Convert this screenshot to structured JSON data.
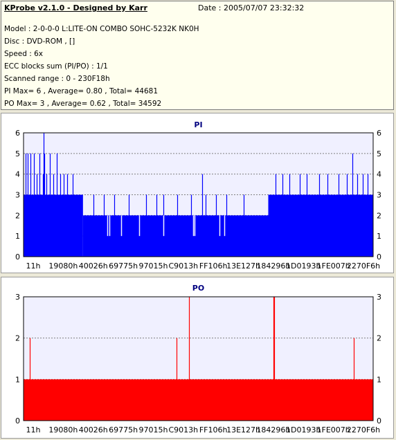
{
  "header": {
    "app_title": "KProbe v2.1.0 - Designed by Karr",
    "date": "Date : 2005/07/07 23:32:32",
    "lines": [
      "Model : 2-0-0-0 L:LITE-ON COMBO SOHC-5232K NK0H",
      "Disc : DVD-ROM ,  []",
      "Speed : 6x",
      "ECC blocks sum (PI/PO) : 1/1",
      "Scanned range : 0 - 230F18h",
      "PI Max= 6 , Average= 0.80 , Total= 44681",
      "PO Max= 3 , Average= 0.62 , Total= 34592"
    ]
  },
  "colors": {
    "pi": "#0000ff",
    "po": "#ff0000",
    "plot_bg": "#f0f0ff",
    "title": "#000080"
  },
  "chart_data": [
    {
      "type": "bar",
      "title": "PI",
      "x_tick_labels": [
        "11h",
        "19080h",
        "40026h",
        "69775h",
        "97015h",
        "C9013h",
        "FF106h",
        "13E127h",
        "184296h",
        "1D0193h",
        "1FE007h",
        "2270F6h"
      ],
      "ylim": [
        0,
        6
      ],
      "y_ticks": [
        0,
        1,
        2,
        3,
        4,
        5,
        6
      ],
      "grid": true,
      "baseline_segments": [
        {
          "from": 0.0,
          "to": 0.17,
          "value": 3
        },
        {
          "from": 0.17,
          "to": 0.7,
          "value": 2
        },
        {
          "from": 0.7,
          "to": 1.0,
          "value": 3
        }
      ],
      "spikes": [
        {
          "x": 0.005,
          "value": 5
        },
        {
          "x": 0.012,
          "value": 5
        },
        {
          "x": 0.02,
          "value": 5
        },
        {
          "x": 0.03,
          "value": 5
        },
        {
          "x": 0.038,
          "value": 4
        },
        {
          "x": 0.045,
          "value": 5
        },
        {
          "x": 0.055,
          "value": 4
        },
        {
          "x": 0.06,
          "value": 5
        },
        {
          "x": 0.065,
          "value": 4
        },
        {
          "x": 0.075,
          "value": 5
        },
        {
          "x": 0.085,
          "value": 4
        },
        {
          "x": 0.095,
          "value": 5
        },
        {
          "x": 0.105,
          "value": 4
        },
        {
          "x": 0.115,
          "value": 4
        },
        {
          "x": 0.125,
          "value": 4
        },
        {
          "x": 0.14,
          "value": 4
        },
        {
          "x": 0.058,
          "value": 6
        },
        {
          "x": 0.16,
          "value": 3
        },
        {
          "x": 0.2,
          "value": 3
        },
        {
          "x": 0.23,
          "value": 3
        },
        {
          "x": 0.26,
          "value": 3
        },
        {
          "x": 0.3,
          "value": 3
        },
        {
          "x": 0.35,
          "value": 3
        },
        {
          "x": 0.38,
          "value": 3
        },
        {
          "x": 0.4,
          "value": 3
        },
        {
          "x": 0.44,
          "value": 3
        },
        {
          "x": 0.48,
          "value": 3
        },
        {
          "x": 0.52,
          "value": 3
        },
        {
          "x": 0.55,
          "value": 3
        },
        {
          "x": 0.58,
          "value": 3
        },
        {
          "x": 0.51,
          "value": 4
        },
        {
          "x": 0.63,
          "value": 3
        },
        {
          "x": 0.72,
          "value": 4
        },
        {
          "x": 0.74,
          "value": 4
        },
        {
          "x": 0.76,
          "value": 4
        },
        {
          "x": 0.79,
          "value": 4
        },
        {
          "x": 0.81,
          "value": 4
        },
        {
          "x": 0.845,
          "value": 4
        },
        {
          "x": 0.87,
          "value": 4
        },
        {
          "x": 0.9,
          "value": 4
        },
        {
          "x": 0.925,
          "value": 4
        },
        {
          "x": 0.94,
          "value": 5
        },
        {
          "x": 0.955,
          "value": 4
        },
        {
          "x": 0.97,
          "value": 4
        },
        {
          "x": 0.985,
          "value": 4
        }
      ],
      "dips": [
        {
          "x": 0.24,
          "value": 1
        },
        {
          "x": 0.245,
          "value": 1
        },
        {
          "x": 0.28,
          "value": 1
        },
        {
          "x": 0.33,
          "value": 1
        },
        {
          "x": 0.4,
          "value": 1
        },
        {
          "x": 0.485,
          "value": 1
        },
        {
          "x": 0.49,
          "value": 1
        },
        {
          "x": 0.56,
          "value": 1
        },
        {
          "x": 0.575,
          "value": 1
        }
      ]
    },
    {
      "type": "bar",
      "title": "PO",
      "x_tick_labels": [
        "11h",
        "19080h",
        "40026h",
        "69775h",
        "97015h",
        "C9013h",
        "FF106h",
        "13E127h",
        "184296h",
        "1D0193h",
        "1FE007h",
        "2270F6h"
      ],
      "ylim": [
        0,
        3
      ],
      "y_ticks": [
        0,
        1,
        2,
        3
      ],
      "grid": true,
      "baseline_segments": [
        {
          "from": 0.0,
          "to": 1.0,
          "value": 1
        }
      ],
      "spikes": [
        {
          "x": 0.018,
          "value": 2
        },
        {
          "x": 0.438,
          "value": 2
        },
        {
          "x": 0.473,
          "value": 3
        },
        {
          "x": 0.715,
          "value": 3
        },
        {
          "x": 0.717,
          "value": 3
        },
        {
          "x": 0.945,
          "value": 2
        }
      ],
      "dips": []
    }
  ]
}
